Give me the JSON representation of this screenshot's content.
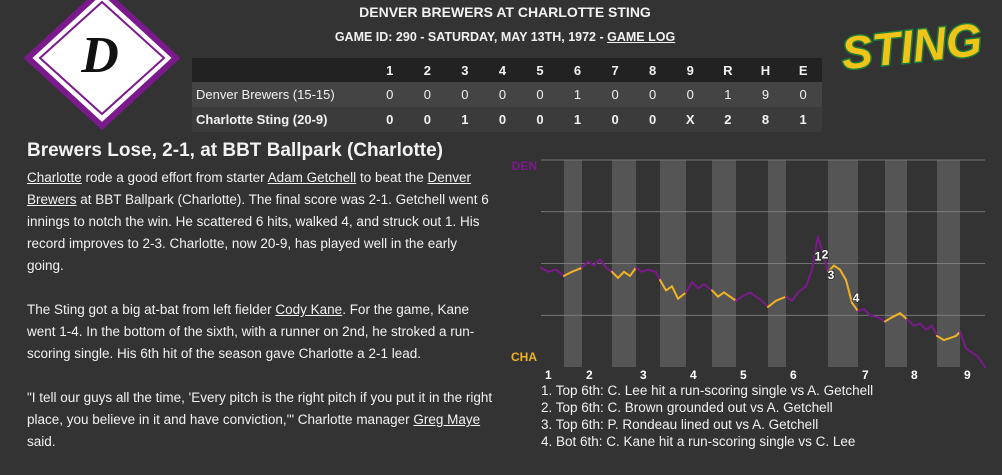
{
  "header": {
    "title": "DENVER BREWERS AT CHARLOTTE STING",
    "subtitle": "GAME ID: 290 - SATURDAY, MAY 13TH, 1972 - ",
    "game_log_link": "GAME LOG",
    "logo_left": "D",
    "logo_right": "STING"
  },
  "box_score": {
    "columns": [
      "1",
      "2",
      "3",
      "4",
      "5",
      "6",
      "7",
      "8",
      "9",
      "R",
      "H",
      "E"
    ],
    "rows": [
      {
        "team": "Denver Brewers (15-15)",
        "cells": [
          0,
          0,
          0,
          0,
          0,
          1,
          0,
          0,
          0,
          1,
          9,
          0
        ]
      },
      {
        "team": "Charlotte Sting (20-9)",
        "cells": [
          0,
          0,
          1,
          0,
          0,
          1,
          0,
          0,
          "X",
          2,
          8,
          1
        ]
      }
    ]
  },
  "article": {
    "headline": "Brewers Lose, 2-1, at BBT Ballpark (Charlotte)",
    "paragraphs": [
      [
        {
          "link": "Charlotte"
        },
        " rode a good effort from starter ",
        {
          "link": "Adam Getchell"
        },
        " to beat the ",
        {
          "link": "Denver Brewers"
        },
        " at BBT Ballpark (Charlotte). The final score was 2-1. Getchell went 6 innings to notch the win. He scattered 6 hits, walked 4, and struck out 1. His record improves to 2-3. Charlotte, now 20-9, has played well in the early going."
      ],
      [
        "The Sting got a big at-bat from left fielder ",
        {
          "link": "Cody Kane"
        },
        ". For the game, Kane went 1-4. In the bottom of the sixth, with a runner on 2nd, he stroked a run-scoring single. His 6th hit of the season gave Charlotte a 2-1 lead."
      ],
      [
        "\"I tell our guys all the time, 'Every pitch is the right pitch if you put it in the right place, you believe in it and have conviction,'\" Charlotte manager ",
        {
          "link": "Greg Maye"
        },
        " said."
      ]
    ]
  },
  "chart_data": {
    "type": "line",
    "y_top_label": "DEN",
    "y_bottom_label": "CHA",
    "x": [
      0,
      1.4,
      3,
      4.6,
      6.2,
      8.2,
      9.4,
      10.6,
      11.8,
      13,
      14.2,
      15.4,
      16.6,
      17.8,
      19,
      20.2,
      21.4,
      23,
      23.8,
      25,
      26.2,
      27.4,
      29,
      30.2,
      31.4,
      32.6,
      34.2,
      35.4,
      36.6,
      39,
      40.2,
      41.8,
      43,
      44.2,
      45.4,
      47,
      49,
      50.2,
      51.4,
      53,
      54.2,
      55.4,
      56.6,
      57.4,
      58.6,
      59.8,
      61,
      62.2,
      63.4,
      64.6,
      65.8,
      67.4,
      68.8,
      70.2,
      71.8,
      73.2,
      74.6,
      75.8,
      77,
      78.2,
      79.2,
      80.6,
      81.8,
      83,
      83.8,
      85,
      86.2,
      87.4,
      88.8
    ],
    "values": [
      48,
      46,
      47,
      44,
      46,
      48,
      51,
      49,
      52,
      48,
      46,
      43,
      46,
      44,
      48,
      46,
      47,
      46,
      42,
      37,
      39,
      33,
      36,
      41,
      38,
      40,
      37,
      34,
      36,
      32,
      34,
      36,
      34,
      32,
      29,
      32,
      34,
      32,
      36,
      39,
      47,
      63,
      53,
      46,
      49,
      47,
      42,
      31,
      27,
      28,
      25,
      24,
      22,
      24,
      26,
      23,
      20,
      21,
      18,
      20,
      15,
      13,
      14,
      15,
      17,
      9,
      7,
      5,
      0
    ],
    "xlim": [
      0,
      88.8
    ],
    "ylim": [
      0,
      100
    ],
    "yticks": [
      25,
      50,
      75,
      100
    ],
    "xticks": [
      {
        "value": 0,
        "label": "1"
      },
      {
        "value": 8.2,
        "label": "2"
      },
      {
        "value": 19,
        "label": "3"
      },
      {
        "value": 29,
        "label": "4"
      },
      {
        "value": 39,
        "label": "5"
      },
      {
        "value": 49,
        "label": "6"
      },
      {
        "value": 63.4,
        "label": "7"
      },
      {
        "value": 73.2,
        "label": "8"
      },
      {
        "value": 83.8,
        "label": "9"
      }
    ],
    "bands": [
      [
        4.6,
        8.2
      ],
      [
        14.2,
        19
      ],
      [
        23.8,
        29
      ],
      [
        34.2,
        39
      ],
      [
        45.4,
        49
      ],
      [
        57.4,
        63.4
      ],
      [
        68.8,
        73.2
      ],
      [
        79.2,
        83.8
      ]
    ],
    "top_color": "#7a1a8c",
    "bottom_color": "#f0b323",
    "band_color": "#555555",
    "grid": true,
    "annotations": [
      {
        "text": "1",
        "x": 55.4,
        "y": 53
      },
      {
        "text": "2",
        "x": 56.8,
        "y": 54
      },
      {
        "text": "3",
        "x": 58,
        "y": 44
      },
      {
        "text": "4",
        "x": 63,
        "y": 33
      }
    ]
  },
  "notes": [
    "1. Top 6th: C. Lee hit a run-scoring single vs A. Getchell",
    "2. Top 6th: C. Brown grounded out vs A. Getchell",
    "3. Top 6th: P. Rondeau lined out vs A. Getchell",
    "4. Bot 6th: C. Kane hit a run-scoring single vs C. Lee"
  ]
}
